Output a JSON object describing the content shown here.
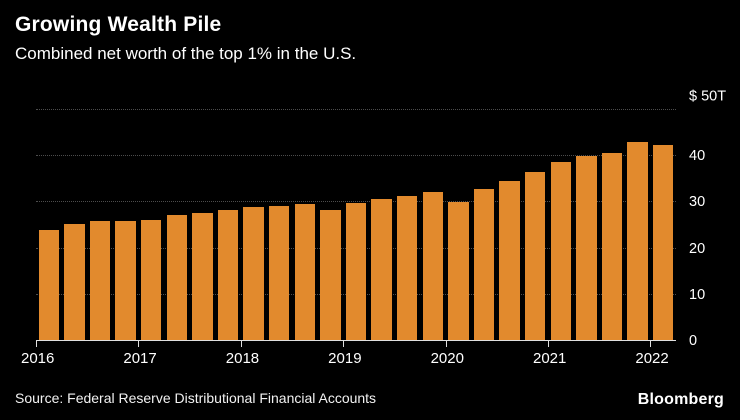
{
  "header": {
    "title": "Growing Wealth Pile",
    "subtitle": "Combined net worth of the top 1% in the U.S."
  },
  "footer": {
    "source": "Source: Federal Reserve Distributional Financial Accounts",
    "brand": "Bloomberg"
  },
  "colors": {
    "background": "#000000",
    "bar": "#E28A2D",
    "gridline": "#4d4d4d",
    "axis_line": "#e0e0e0",
    "text": "#ffffff"
  },
  "chart_data": {
    "type": "bar",
    "title": "Growing Wealth Pile",
    "subtitle": "Combined net worth of the top 1% in the U.S.",
    "unit": "trillions of U.S. dollars",
    "categories": [
      "2016 Q1",
      "2016 Q2",
      "2016 Q3",
      "2016 Q4",
      "2017 Q1",
      "2017 Q2",
      "2017 Q3",
      "2017 Q4",
      "2018 Q1",
      "2018 Q2",
      "2018 Q3",
      "2018 Q4",
      "2019 Q1",
      "2019 Q2",
      "2019 Q3",
      "2019 Q4",
      "2020 Q1",
      "2020 Q2",
      "2020 Q3",
      "2020 Q4",
      "2021 Q1",
      "2021 Q2",
      "2021 Q3",
      "2021 Q4",
      "2022 Q1"
    ],
    "values": [
      24.0,
      25.3,
      25.9,
      26.0,
      26.3,
      27.2,
      27.8,
      28.4,
      29.0,
      29.2,
      29.7,
      28.3,
      29.9,
      30.8,
      31.3,
      32.2,
      30.1,
      33.0,
      34.6,
      36.6,
      38.8,
      40.1,
      40.8,
      43.0,
      42.4
    ],
    "ylim": [
      0,
      50
    ],
    "y_axis": [
      {
        "value": 50,
        "label": "$ 50T",
        "position": "above"
      },
      {
        "value": 40,
        "label": "40",
        "position": "center"
      },
      {
        "value": 30,
        "label": "30",
        "position": "center"
      },
      {
        "value": 20,
        "label": "20",
        "position": "center"
      },
      {
        "value": 10,
        "label": "10",
        "position": "center"
      },
      {
        "value": 0,
        "label": "0",
        "position": "center"
      }
    ],
    "x_tick_labels": [
      "2016",
      "2017",
      "2018",
      "2019",
      "2020",
      "2021",
      "2022"
    ],
    "bars_per_year": 4,
    "bar_color": "#E28A2D",
    "grid": "horizontal dotted",
    "legend_position": "none",
    "y_axis_side": "right"
  }
}
